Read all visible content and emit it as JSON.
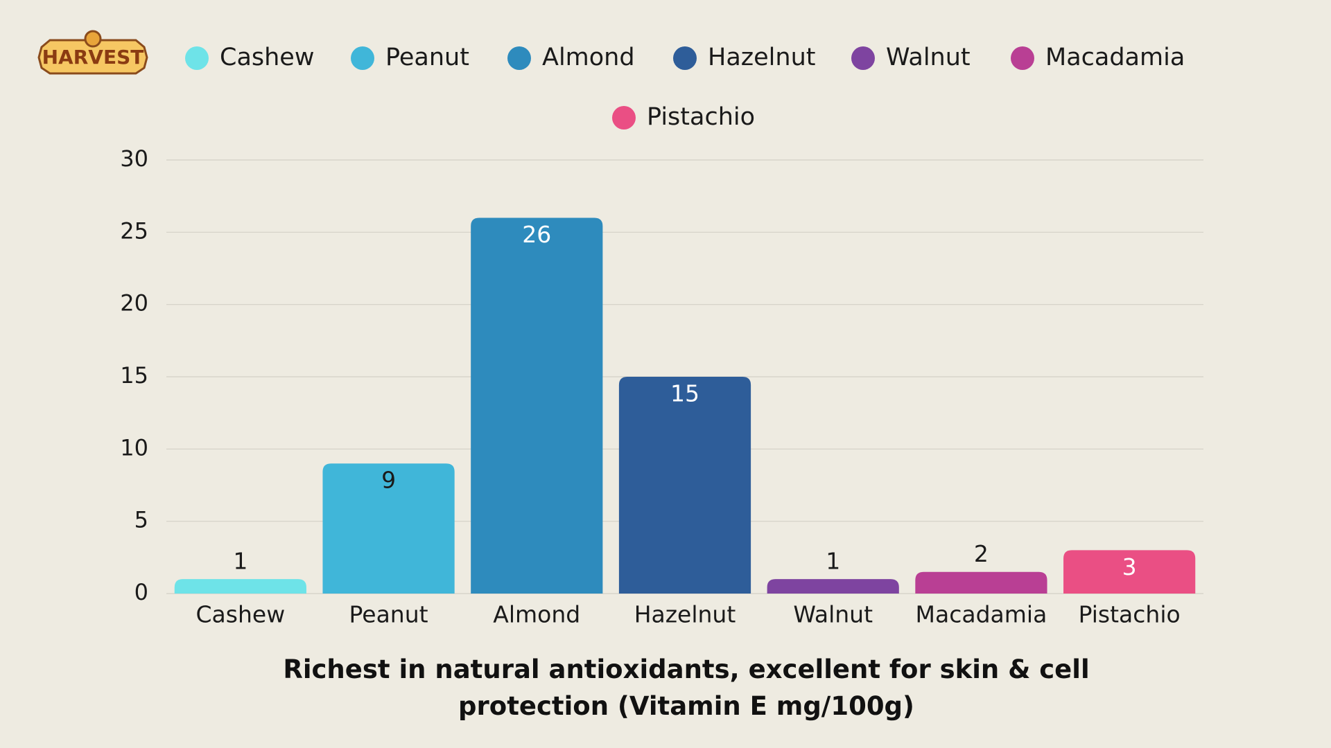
{
  "logo": "HARVEST",
  "chart_data": {
    "type": "bar",
    "title": "Richest in natural antioxidants, excellent for skin & cell protection (Vitamin E mg/100g)",
    "categories": [
      "Cashew",
      "Peanut",
      "Almond",
      "Hazelnut",
      "Walnut",
      "Macadamia",
      "Pistachio"
    ],
    "values": [
      1,
      9,
      26,
      15,
      1,
      1.5,
      3
    ],
    "value_labels": [
      "1",
      "9",
      "26",
      "15",
      "1",
      "2",
      "3"
    ],
    "colors": [
      "#6ee3e8",
      "#40b6d9",
      "#2e8bbd",
      "#2e5d99",
      "#7e44a0",
      "#b93f94",
      "#ea4f84"
    ],
    "ylim": [
      0,
      30
    ],
    "yticks": [
      0,
      5,
      10,
      15,
      20,
      25,
      30
    ],
    "grid": true
  }
}
